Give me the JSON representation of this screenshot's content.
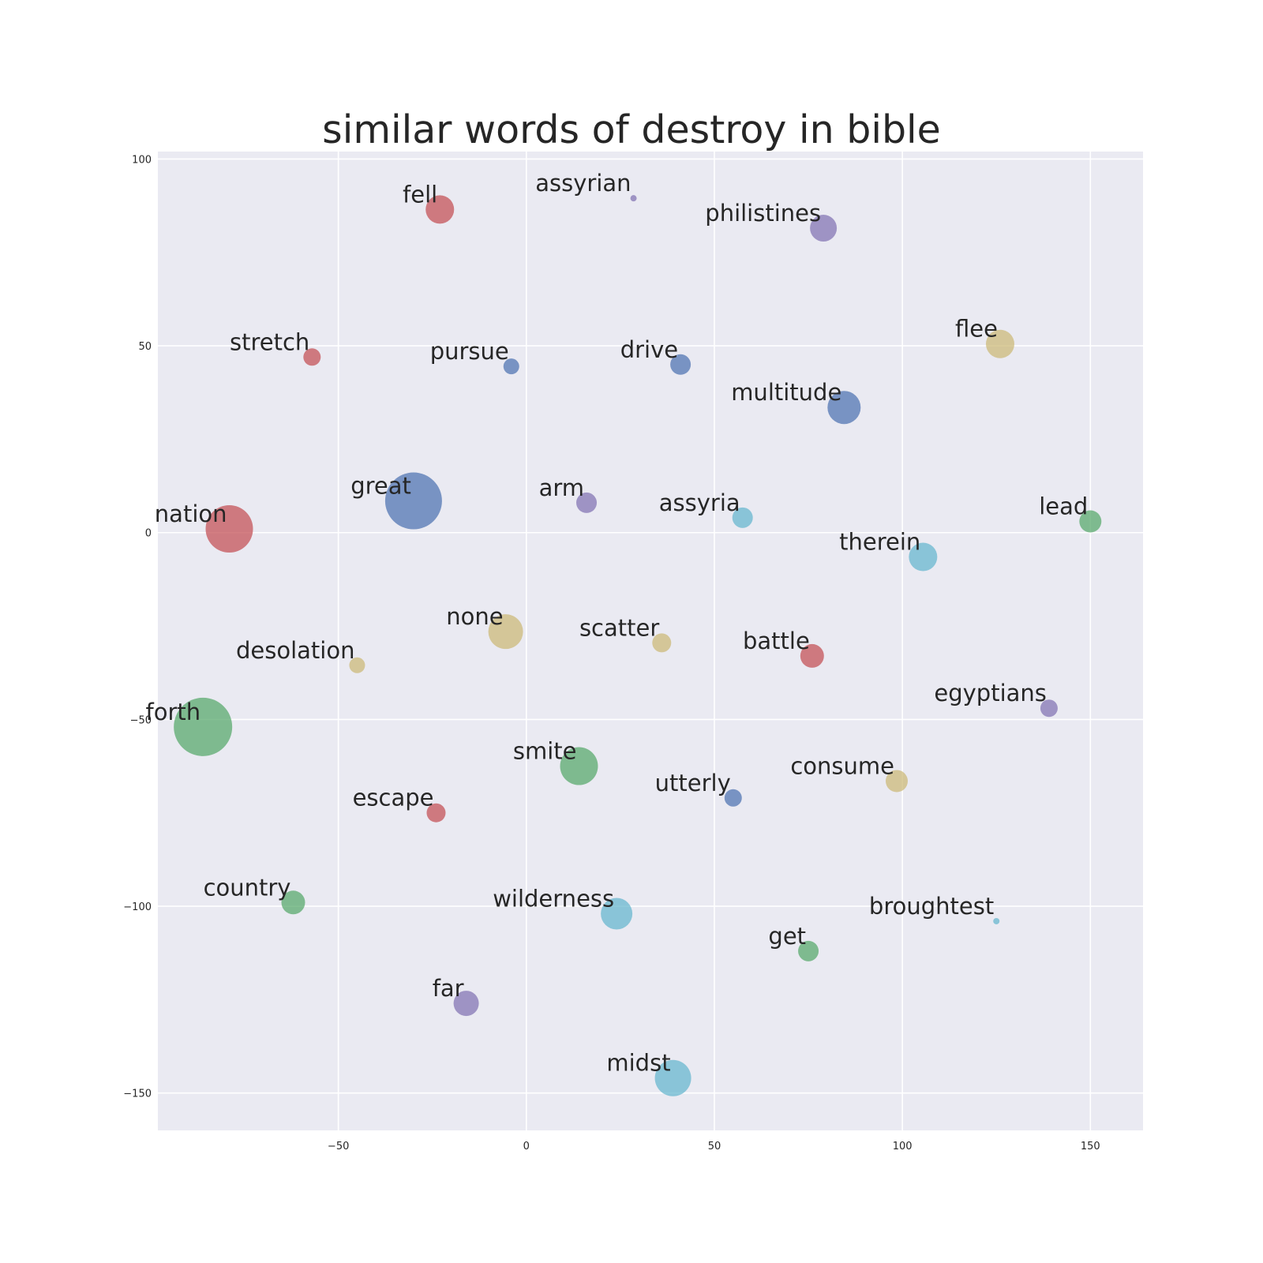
{
  "chart_data": {
    "type": "scatter",
    "title": "similar words of destroy in bible",
    "xlabel": "",
    "ylabel": "",
    "xlim": [
      -98,
      164
    ],
    "ylim": [
      -160,
      102
    ],
    "xticks": [
      -50,
      0,
      50,
      100,
      150
    ],
    "yticks": [
      100,
      50,
      0,
      -50,
      -100,
      -150
    ],
    "grid": true,
    "colors": {
      "red": "#c44e52",
      "blue": "#4c72b0",
      "purple": "#8172b2",
      "green": "#55a868",
      "yellow": "#ccb974",
      "cyan": "#64b5cd",
      "plot_background": "#eaeaf2",
      "grid": "#ffffff"
    },
    "points": [
      {
        "label": "fell",
        "x": -23,
        "y": 86.5,
        "size": 18,
        "color": "red"
      },
      {
        "label": "assyrian",
        "x": 28.5,
        "y": 89.5,
        "size": 4,
        "color": "purple"
      },
      {
        "label": "philistines",
        "x": 79,
        "y": 81.5,
        "size": 17,
        "color": "purple"
      },
      {
        "label": "stretch",
        "x": -57,
        "y": 47,
        "size": 11,
        "color": "red"
      },
      {
        "label": "pursue",
        "x": -4,
        "y": 44.5,
        "size": 10,
        "color": "blue"
      },
      {
        "label": "drive",
        "x": 41,
        "y": 45,
        "size": 13,
        "color": "blue"
      },
      {
        "label": "flee",
        "x": 126,
        "y": 50.5,
        "size": 18,
        "color": "yellow"
      },
      {
        "label": "multitude",
        "x": 84.5,
        "y": 33.5,
        "size": 21,
        "color": "blue"
      },
      {
        "label": "great",
        "x": -30,
        "y": 8.5,
        "size": 36,
        "color": "blue"
      },
      {
        "label": "arm",
        "x": 16,
        "y": 8,
        "size": 13,
        "color": "purple"
      },
      {
        "label": "nation",
        "x": -79,
        "y": 1,
        "size": 30,
        "color": "red"
      },
      {
        "label": "assyria",
        "x": 57.5,
        "y": 4,
        "size": 13,
        "color": "cyan"
      },
      {
        "label": "lead",
        "x": 150,
        "y": 3,
        "size": 14,
        "color": "green"
      },
      {
        "label": "therein",
        "x": 105.5,
        "y": -6.5,
        "size": 18,
        "color": "cyan"
      },
      {
        "label": "none",
        "x": -5.5,
        "y": -26.5,
        "size": 22,
        "color": "yellow"
      },
      {
        "label": "scatter",
        "x": 36,
        "y": -29.5,
        "size": 12,
        "color": "yellow"
      },
      {
        "label": "battle",
        "x": 76,
        "y": -33,
        "size": 15,
        "color": "red"
      },
      {
        "label": "desolation",
        "x": -45,
        "y": -35.5,
        "size": 10,
        "color": "yellow"
      },
      {
        "label": "egyptians",
        "x": 139,
        "y": -47,
        "size": 11,
        "color": "purple"
      },
      {
        "label": "forth",
        "x": -86,
        "y": -52,
        "size": 37,
        "color": "green"
      },
      {
        "label": "smite",
        "x": 14,
        "y": -62.5,
        "size": 24,
        "color": "green"
      },
      {
        "label": "consume",
        "x": 98.5,
        "y": -66.5,
        "size": 14,
        "color": "yellow"
      },
      {
        "label": "utterly",
        "x": 55,
        "y": -71,
        "size": 11,
        "color": "blue"
      },
      {
        "label": "escape",
        "x": -24,
        "y": -75,
        "size": 12,
        "color": "red"
      },
      {
        "label": "country",
        "x": -62,
        "y": -99,
        "size": 15,
        "color": "green"
      },
      {
        "label": "wilderness",
        "x": 24,
        "y": -102,
        "size": 20,
        "color": "cyan"
      },
      {
        "label": "broughtest",
        "x": 125,
        "y": -104,
        "size": 4,
        "color": "cyan"
      },
      {
        "label": "get",
        "x": 75,
        "y": -112,
        "size": 13,
        "color": "green"
      },
      {
        "label": "far",
        "x": -16,
        "y": -126,
        "size": 16,
        "color": "purple"
      },
      {
        "label": "midst",
        "x": 39,
        "y": -146,
        "size": 23,
        "color": "cyan"
      }
    ]
  }
}
